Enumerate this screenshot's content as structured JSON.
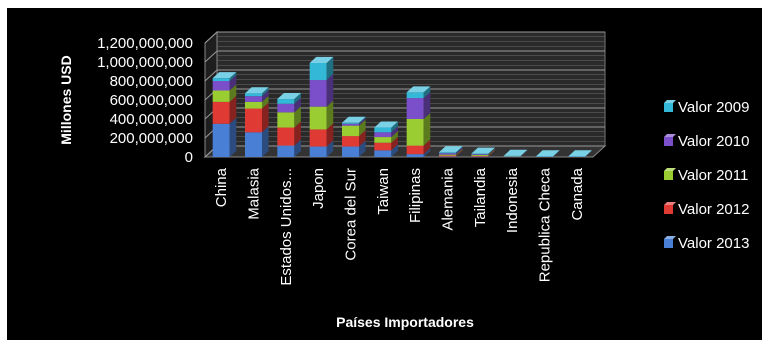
{
  "chart_data": {
    "type": "bar",
    "stacked": true,
    "three_d": true,
    "title": "",
    "xlabel": "Países Importadores",
    "ylabel": "Millones USD",
    "ylim": [
      0,
      1200000000
    ],
    "ytick_step": 200000000,
    "grid": true,
    "legend_position": "right",
    "categories": [
      "China",
      "Malasia",
      "Estados Unidos...",
      "Japon",
      "Corea del Sur",
      "Taiwan",
      "Filipinas",
      "Alemania",
      "Tailandia",
      "Indonesia",
      "Republica Checa",
      "Canada"
    ],
    "series": [
      {
        "name": "Valor 2013",
        "color": "#4a7fd6",
        "values": [
          350000000,
          260000000,
          120000000,
          110000000,
          110000000,
          70000000,
          30000000,
          5000000,
          4000000,
          2000000,
          2000000,
          2000000
        ]
      },
      {
        "name": "Valor 2012",
        "color": "#e03a35",
        "values": [
          230000000,
          250000000,
          190000000,
          180000000,
          110000000,
          80000000,
          90000000,
          10000000,
          8000000,
          2000000,
          1000000,
          1000000
        ]
      },
      {
        "name": "Valor 2011",
        "color": "#9acd32",
        "values": [
          120000000,
          70000000,
          160000000,
          240000000,
          110000000,
          60000000,
          280000000,
          10000000,
          10000000,
          2000000,
          1000000,
          1000000
        ]
      },
      {
        "name": "Valor 2010",
        "color": "#7b4fc9",
        "values": [
          100000000,
          60000000,
          90000000,
          280000000,
          20000000,
          50000000,
          220000000,
          15000000,
          8000000,
          3000000,
          1000000,
          1000000
        ]
      },
      {
        "name": "Valor 2009",
        "color": "#33b8d8",
        "values": [
          30000000,
          30000000,
          50000000,
          180000000,
          10000000,
          50000000,
          60000000,
          10000000,
          5000000,
          3000000,
          2000000,
          2000000
        ]
      }
    ]
  }
}
